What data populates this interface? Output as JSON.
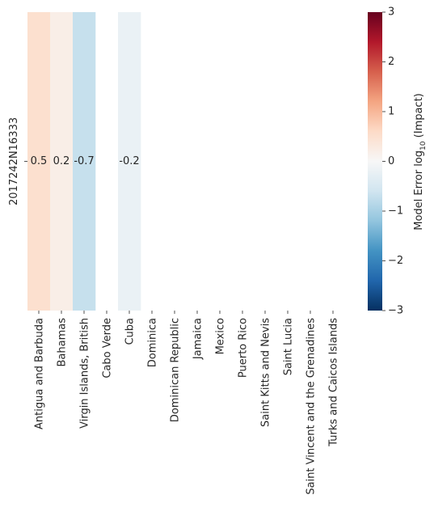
{
  "chart_data": {
    "type": "heatmap",
    "rows": [
      "2017242N16333"
    ],
    "columns": [
      "Antigua and Barbuda",
      "Bahamas",
      "Virgin Islands, British",
      "Cabo Verde",
      "Cuba",
      "Dominica",
      "Dominican Republic",
      "Jamaica",
      "Mexico",
      "Puerto Rico",
      "Saint Kitts and Nevis",
      "Saint Lucia",
      "Saint Vincent and the Grenadines",
      "Turks and Caicos Islands"
    ],
    "values": [
      [
        0.5,
        0.2,
        -0.7,
        null,
        -0.2,
        null,
        null,
        null,
        null,
        null,
        null,
        null,
        null,
        null
      ]
    ],
    "value_labels": [
      [
        "0.5",
        "0.2",
        "-0.7",
        "",
        "-0.2",
        "",
        "",
        "",
        "",
        "",
        "",
        "",
        "",
        ""
      ]
    ],
    "colorbar": {
      "label_prefix": "Model Error log",
      "label_sub": "10",
      "label_suffix": " (Impact)",
      "vmin": -3,
      "vmax": 3,
      "ticks": [
        3,
        2,
        1,
        0,
        -1,
        -2,
        -3
      ],
      "tick_labels": [
        "3",
        "2",
        "1",
        "0",
        "−1",
        "−2",
        "−3"
      ],
      "colormap": "RdBu_r"
    }
  }
}
